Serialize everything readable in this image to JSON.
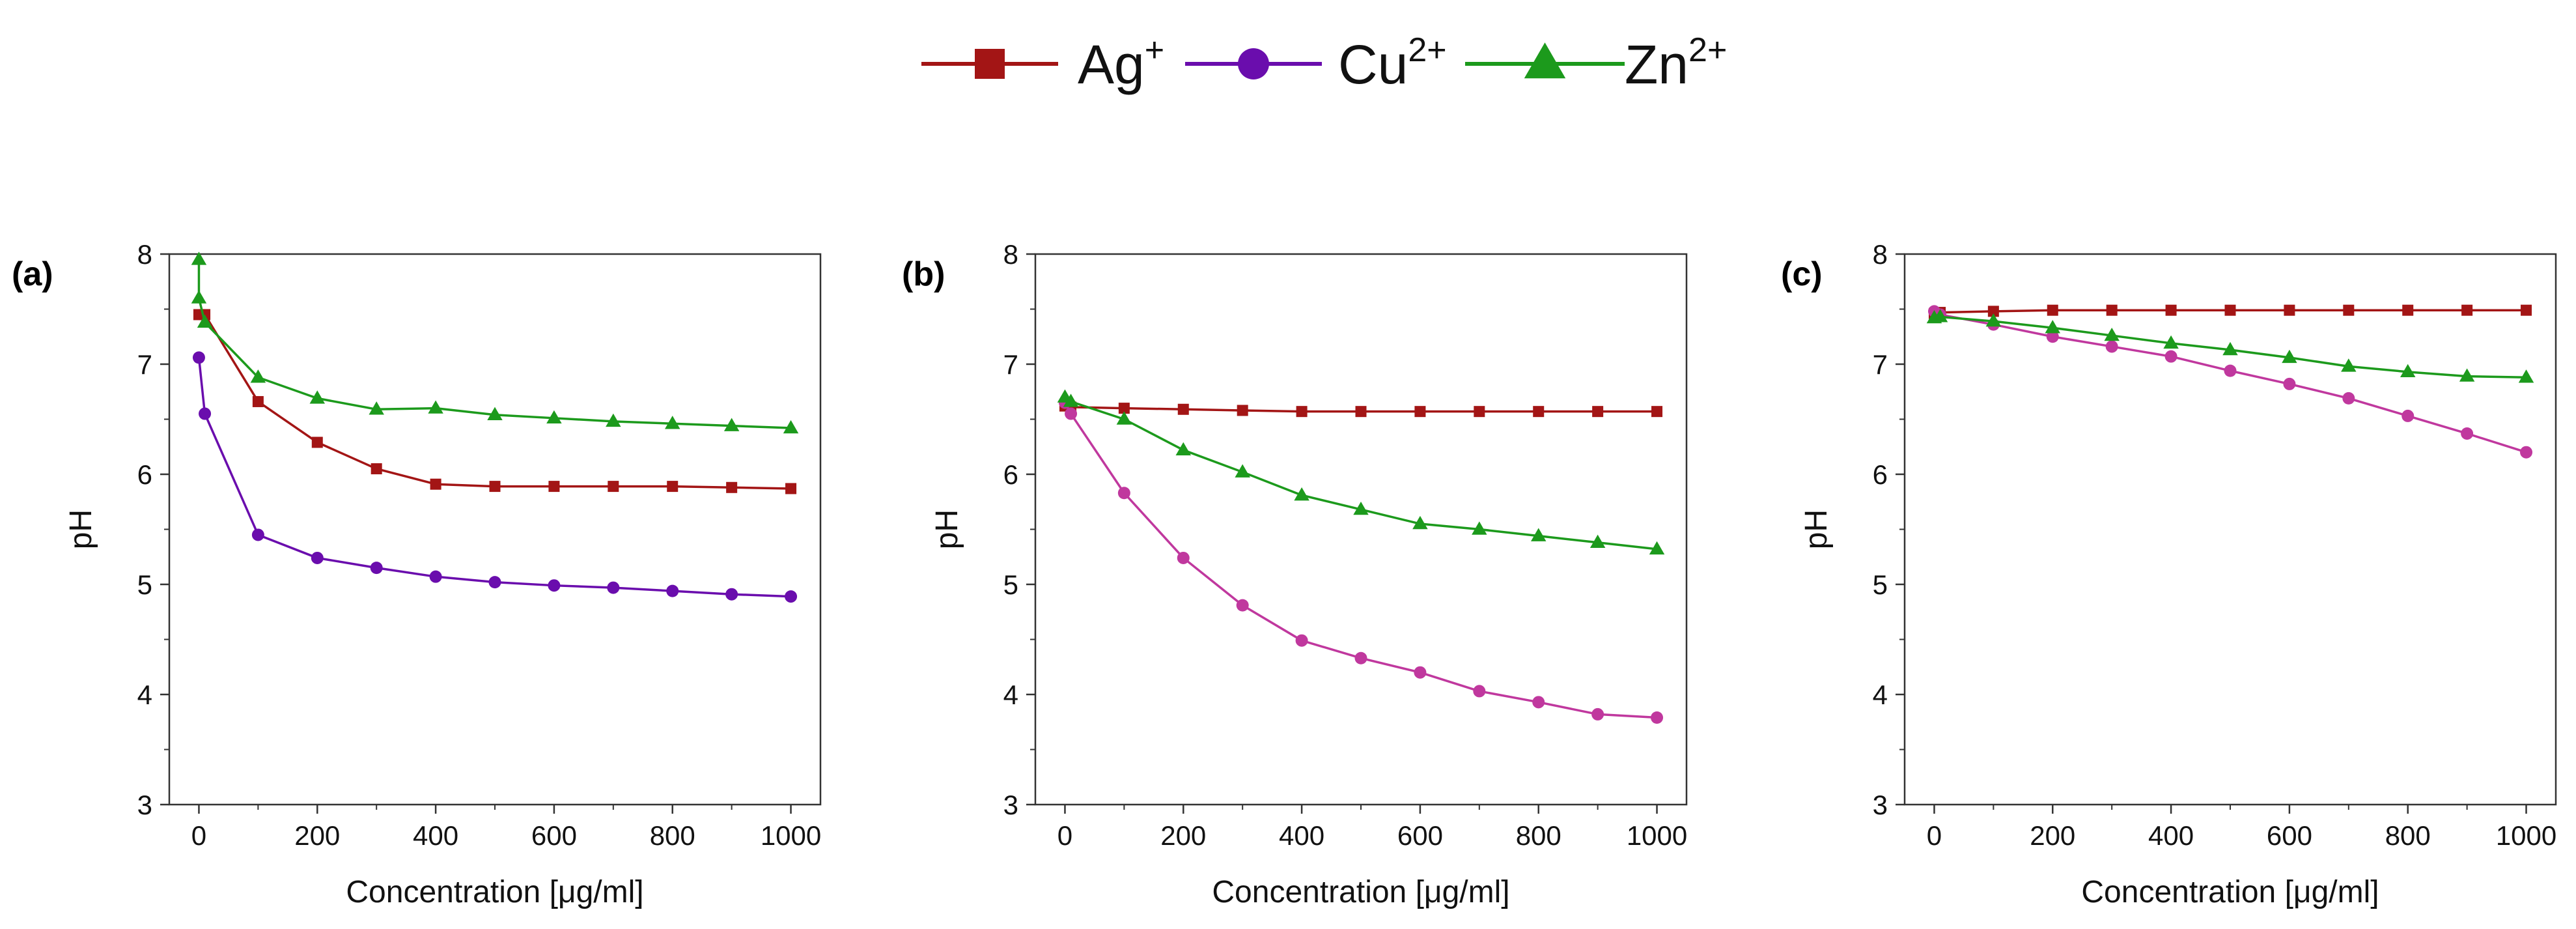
{
  "chart_data": {
    "legend": [
      {
        "label": "Ag",
        "sup": "+",
        "color": "#a31515",
        "marker": "square"
      },
      {
        "label": "Cu",
        "sup": "2+",
        "color": "#6a0dad",
        "marker": "circle"
      },
      {
        "label": "Zn",
        "sup": "2+",
        "color": "#1c9a1c",
        "marker": "triangle"
      }
    ],
    "panels": [
      {
        "label": "(a)",
        "type": "line",
        "xlabel": "Concentration [μg/ml]",
        "ylabel": "pH",
        "xlim": [
          -50,
          1050
        ],
        "ylim": [
          3,
          8
        ],
        "xticks": [
          0,
          200,
          400,
          600,
          800,
          1000
        ],
        "yticks": [
          3,
          4,
          5,
          6,
          7,
          8
        ],
        "series": [
          {
            "name": "Ag+",
            "color": "#a31515",
            "marker": "square",
            "x": [
              0,
              10,
              100,
              200,
              300,
              400,
              500,
              600,
              700,
              800,
              900,
              1000
            ],
            "y": [
              7.45,
              7.45,
              6.66,
              6.29,
              6.05,
              5.91,
              5.89,
              5.89,
              5.89,
              5.89,
              5.88,
              5.87
            ]
          },
          {
            "name": "Cu2+",
            "color": "#6a0dad",
            "marker": "circle",
            "x": [
              0,
              10,
              100,
              200,
              300,
              400,
              500,
              600,
              700,
              800,
              900,
              1000
            ],
            "y": [
              7.06,
              6.55,
              5.45,
              5.24,
              5.15,
              5.07,
              5.02,
              4.99,
              4.97,
              4.94,
              4.91,
              4.89
            ]
          },
          {
            "name": "Zn2+",
            "color": "#1c9a1c",
            "marker": "triangle",
            "x": [
              0,
              0,
              10,
              100,
              200,
              300,
              400,
              500,
              600,
              700,
              800,
              900,
              1000
            ],
            "y": [
              7.95,
              7.6,
              7.38,
              6.88,
              6.69,
              6.59,
              6.6,
              6.54,
              6.51,
              6.48,
              6.46,
              6.44,
              6.42
            ]
          }
        ]
      },
      {
        "label": "(b)",
        "type": "line",
        "xlabel": "Concentration [μg/ml]",
        "ylabel": "pH",
        "xlim": [
          -50,
          1050
        ],
        "ylim": [
          3,
          8
        ],
        "xticks": [
          0,
          200,
          400,
          600,
          800,
          1000
        ],
        "yticks": [
          3,
          4,
          5,
          6,
          7,
          8
        ],
        "series": [
          {
            "name": "Ag+",
            "color": "#a31515",
            "marker": "square",
            "x": [
              0,
              10,
              100,
              200,
              300,
              400,
              500,
              600,
              700,
              800,
              900,
              1000
            ],
            "y": [
              6.62,
              6.61,
              6.6,
              6.59,
              6.58,
              6.57,
              6.57,
              6.57,
              6.57,
              6.57,
              6.57,
              6.57
            ]
          },
          {
            "name": "Cu2+",
            "color": "#c0389e",
            "marker": "circle",
            "x": [
              0,
              10,
              100,
              200,
              300,
              400,
              500,
              600,
              700,
              800,
              900,
              1000
            ],
            "y": [
              6.65,
              6.55,
              5.83,
              5.24,
              4.81,
              4.49,
              4.33,
              4.2,
              4.03,
              3.93,
              3.82,
              3.79
            ]
          },
          {
            "name": "Zn2+",
            "color": "#1c9a1c",
            "marker": "triangle",
            "x": [
              0,
              10,
              100,
              200,
              300,
              400,
              500,
              600,
              700,
              800,
              900,
              1000
            ],
            "y": [
              6.7,
              6.66,
              6.5,
              6.22,
              6.02,
              5.81,
              5.68,
              5.55,
              5.5,
              5.44,
              5.38,
              5.32
            ]
          }
        ]
      },
      {
        "label": "(c)",
        "type": "line",
        "xlabel": "Concentration [μg/ml]",
        "ylabel": "pH",
        "xlim": [
          -50,
          1050
        ],
        "ylim": [
          3,
          8
        ],
        "xticks": [
          0,
          200,
          400,
          600,
          800,
          1000
        ],
        "yticks": [
          3,
          4,
          5,
          6,
          7,
          8
        ],
        "series": [
          {
            "name": "Ag+",
            "color": "#a31515",
            "marker": "square",
            "x": [
              0,
              10,
              100,
              200,
              300,
              400,
              500,
              600,
              700,
              800,
              900,
              1000
            ],
            "y": [
              7.46,
              7.47,
              7.48,
              7.49,
              7.49,
              7.49,
              7.49,
              7.49,
              7.49,
              7.49,
              7.49,
              7.49
            ]
          },
          {
            "name": "Cu2+",
            "color": "#c0389e",
            "marker": "circle",
            "x": [
              0,
              10,
              100,
              200,
              300,
              400,
              500,
              600,
              700,
              800,
              900,
              1000
            ],
            "y": [
              7.48,
              7.45,
              7.36,
              7.25,
              7.16,
              7.07,
              6.94,
              6.82,
              6.69,
              6.53,
              6.37,
              6.2
            ]
          },
          {
            "name": "Zn2+",
            "color": "#1c9a1c",
            "marker": "triangle",
            "x": [
              0,
              10,
              100,
              200,
              300,
              400,
              500,
              600,
              700,
              800,
              900,
              1000
            ],
            "y": [
              7.42,
              7.43,
              7.39,
              7.33,
              7.26,
              7.19,
              7.13,
              7.06,
              6.98,
              6.93,
              6.89,
              6.88
            ]
          }
        ]
      }
    ]
  }
}
